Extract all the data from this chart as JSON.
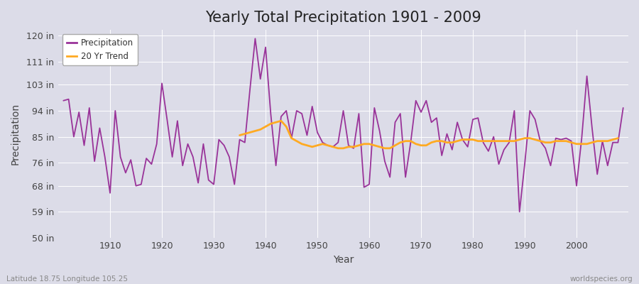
{
  "title": "Yearly Total Precipitation 1901 - 2009",
  "xlabel": "Year",
  "ylabel": "Precipitation",
  "subtitle_left": "Latitude 18.75 Longitude 105.25",
  "subtitle_right": "worldspecies.org",
  "bg_color": "#dcdce8",
  "plot_bg_color": "#dcdce8",
  "precip_color": "#993399",
  "trend_color": "#ffaa22",
  "ylim": [
    50,
    122
  ],
  "yticks": [
    50,
    59,
    68,
    76,
    85,
    94,
    103,
    111,
    120
  ],
  "ytick_labels": [
    "50 in",
    "59 in",
    "68 in",
    "76 in",
    "85 in",
    "94 in",
    "103 in",
    "111 in",
    "120 in"
  ],
  "years": [
    1901,
    1902,
    1903,
    1904,
    1905,
    1906,
    1907,
    1908,
    1909,
    1910,
    1911,
    1912,
    1913,
    1914,
    1915,
    1916,
    1917,
    1918,
    1919,
    1920,
    1921,
    1922,
    1923,
    1924,
    1925,
    1926,
    1927,
    1928,
    1929,
    1930,
    1931,
    1932,
    1933,
    1934,
    1935,
    1936,
    1937,
    1938,
    1939,
    1940,
    1941,
    1942,
    1943,
    1944,
    1945,
    1946,
    1947,
    1948,
    1949,
    1950,
    1951,
    1952,
    1953,
    1954,
    1955,
    1956,
    1957,
    1958,
    1959,
    1960,
    1961,
    1962,
    1963,
    1964,
    1965,
    1966,
    1967,
    1968,
    1969,
    1970,
    1971,
    1972,
    1973,
    1974,
    1975,
    1976,
    1977,
    1978,
    1979,
    1980,
    1981,
    1982,
    1983,
    1984,
    1985,
    1986,
    1987,
    1988,
    1989,
    1990,
    1991,
    1992,
    1993,
    1994,
    1995,
    1996,
    1997,
    1998,
    1999,
    2000,
    2001,
    2002,
    2003,
    2004,
    2005,
    2006,
    2007,
    2008,
    2009
  ],
  "precip": [
    97.5,
    98.0,
    85.0,
    93.5,
    82.0,
    95.0,
    76.5,
    88.0,
    78.0,
    65.5,
    94.0,
    78.0,
    72.5,
    77.0,
    68.0,
    68.5,
    77.5,
    75.5,
    82.5,
    103.5,
    91.0,
    78.0,
    90.5,
    75.0,
    82.5,
    78.0,
    69.0,
    82.5,
    70.0,
    68.5,
    84.0,
    82.0,
    78.0,
    68.5,
    84.0,
    83.0,
    101.5,
    119.0,
    105.0,
    116.0,
    93.0,
    75.0,
    92.0,
    94.0,
    84.5,
    94.0,
    93.0,
    85.5,
    95.5,
    86.5,
    83.0,
    82.0,
    81.5,
    83.0,
    94.0,
    82.0,
    81.0,
    93.0,
    67.5,
    68.5,
    95.0,
    87.0,
    76.5,
    71.0,
    90.0,
    93.0,
    71.0,
    83.0,
    97.5,
    93.5,
    97.5,
    90.0,
    91.5,
    78.5,
    86.0,
    80.5,
    90.0,
    84.0,
    81.5,
    91.0,
    91.5,
    83.0,
    80.0,
    85.0,
    75.5,
    80.5,
    83.0,
    94.0,
    59.0,
    75.5,
    94.0,
    91.0,
    83.5,
    81.0,
    75.0,
    84.5,
    84.0,
    84.5,
    83.5,
    68.0,
    84.5,
    106.0,
    88.0,
    72.0,
    83.5,
    75.0,
    83.0,
    83.0,
    95.0
  ],
  "trend_start_year": 1935,
  "trend": [
    85.5,
    86.0,
    86.5,
    87.0,
    87.5,
    88.5,
    89.5,
    90.0,
    90.5,
    88.5,
    84.5,
    83.5,
    82.5,
    82.0,
    81.5,
    82.0,
    82.5,
    82.0,
    81.5,
    81.0,
    81.0,
    81.5,
    81.5,
    82.0,
    82.5,
    82.5,
    82.0,
    81.5,
    81.0,
    81.0,
    82.0,
    83.0,
    83.5,
    83.5,
    82.5,
    82.0,
    82.0,
    83.0,
    83.5,
    83.5,
    83.0,
    83.0,
    83.5,
    84.0,
    84.0,
    84.0,
    83.5,
    83.5,
    83.5,
    83.5,
    83.5,
    83.5,
    83.5,
    83.5,
    84.0,
    84.5,
    84.5,
    84.0,
    83.5,
    83.0,
    83.0,
    83.5,
    83.5,
    83.5,
    83.0,
    82.5,
    82.5,
    82.5,
    83.0,
    83.5,
    83.5,
    83.5,
    84.0,
    84.5
  ],
  "xlim": [
    1900,
    2010
  ],
  "xticks": [
    1910,
    1920,
    1930,
    1940,
    1950,
    1960,
    1970,
    1980,
    1990,
    2000
  ],
  "title_fontsize": 15,
  "tick_fontsize": 9,
  "label_fontsize": 10,
  "grid_color": "#ffffff",
  "grid_linewidth": 0.7,
  "line_linewidth": 1.3,
  "trend_linewidth": 2.0
}
